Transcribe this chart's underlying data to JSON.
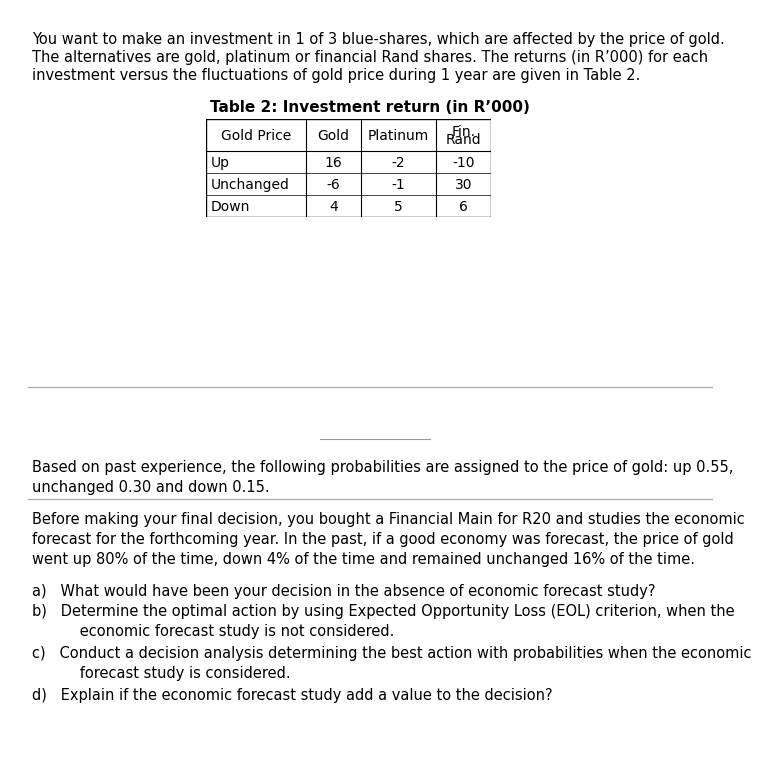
{
  "intro_line1": "You want to make an investment in 1 of 3 blue-shares, which are affected by the price of gold.",
  "intro_line2": "The alternatives are gold, platinum or financial Rand shares. The returns (in R’000) for each",
  "intro_line3": "investment versus the fluctuations of gold price during 1 year are given in Table 2.",
  "table_title": "Table 2: Investment return (in R’000)",
  "col_headers": [
    "Gold Price",
    "Gold",
    "Platinum",
    "Fin.\nRand"
  ],
  "rows": [
    [
      "Up",
      "16",
      "-2",
      "-10"
    ],
    [
      "Unchanged",
      "-6",
      "-1",
      "30"
    ],
    [
      "Down",
      "4",
      "5",
      "6"
    ]
  ],
  "prob_line1": "Based on past experience, the following probabilities are assigned to the price of gold: up 0.55,",
  "prob_line2": "unchanged 0.30 and down 0.15.",
  "before_line1": "Before making your final decision, you bought a Financial Main for R20 and studies the economic",
  "before_line2": "forecast for the forthcoming year. In the past, if a good economy was forecast, the price of gold",
  "before_line3": "went up 80% of the time, down 4% of the time and remained unchanged 16% of the time.",
  "q_a1": "a)   What would have been your decision in the absence of economic forecast study?",
  "q_b1": "b)   Determine the optimal action by using Expected Opportunity Loss (EOL) criterion, when the",
  "q_b2": "      economic forecast study is not considered.",
  "q_c1": "c)   Conduct a decision analysis determining the best action with probabilities when the economic",
  "q_c2": "      forecast study is considered.",
  "q_d1": "d)   Explain if the economic forecast study add a value to the decision?",
  "bg_color": "#ffffff",
  "text_color": "#000000",
  "line_color": "#aaaaaa",
  "table_border_color": "#000000"
}
